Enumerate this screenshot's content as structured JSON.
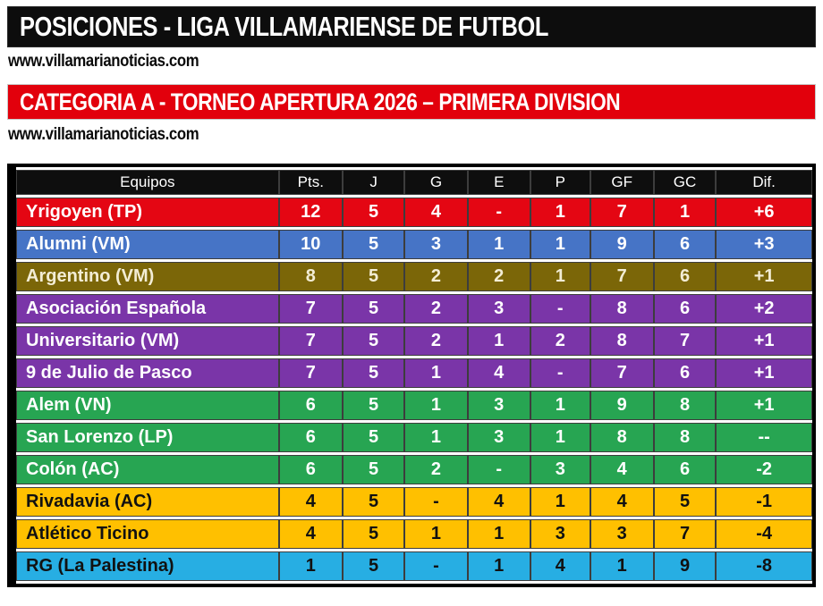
{
  "page": {
    "title_bar": "POSICIONES - LIGA VILLAMARIENSE DE FUTBOL",
    "website_top": "www.villamarianoticias.com",
    "category_bar": "CATEGORIA A - TORNEO APERTURA 2026 – PRIMERA DIVISION",
    "website_bottom": "www.villamarianoticias.com"
  },
  "colors": {
    "title_bar_bg": "#0d0d0d",
    "title_bar_fg": "#ffffff",
    "category_bar_bg": "#e2000c",
    "category_bar_fg": "#ffffff",
    "table_header_bg": "#0e0e0e",
    "table_header_fg": "#ffffff",
    "table_frame": "#000000",
    "cell_border": "#3d3d3d",
    "row_red": "#e40613",
    "row_blue": "#4674c6",
    "row_olive": "#7b6608",
    "row_purple": "#7a35a8",
    "row_green": "#27a552",
    "row_yellow": "#ffc000",
    "row_cyan": "#27aee3"
  },
  "table": {
    "headers": [
      "Equipos",
      "Pts.",
      "J",
      "G",
      "E",
      "P",
      "GF",
      "GC",
      "Dif."
    ],
    "col_widths": [
      "33%",
      "8%",
      "7.8%",
      "7.9%",
      "7.9%",
      "7.5%",
      "8%",
      "7.8%",
      "12.1%"
    ],
    "rows": [
      {
        "team": "Yrigoyen (TP)",
        "values": [
          "12",
          "5",
          "4",
          "-",
          "1",
          "7",
          "1",
          "+6"
        ],
        "bg": "#e40613",
        "fg": "#ffffff"
      },
      {
        "team": "Alumni (VM)",
        "values": [
          "10",
          "5",
          "3",
          "1",
          "1",
          "9",
          "6",
          "+3"
        ],
        "bg": "#4674c6",
        "fg": "#ffffff"
      },
      {
        "team": "Argentino (VM)",
        "values": [
          "8",
          "5",
          "2",
          "2",
          "1",
          "7",
          "6",
          "+1"
        ],
        "bg": "#7b6608",
        "fg": "#f3edd5"
      },
      {
        "team": "Asociación Española",
        "values": [
          "7",
          "5",
          "2",
          "3",
          "-",
          "8",
          "6",
          "+2"
        ],
        "bg": "#7a35a8",
        "fg": "#ffffff"
      },
      {
        "team": "Universitario (VM)",
        "values": [
          "7",
          "5",
          "2",
          "1",
          "2",
          "8",
          "7",
          "+1"
        ],
        "bg": "#7a35a8",
        "fg": "#ffffff"
      },
      {
        "team": "9 de Julio de Pasco",
        "values": [
          "7",
          "5",
          "1",
          "4",
          "-",
          "7",
          "6",
          "+1"
        ],
        "bg": "#7a35a8",
        "fg": "#ffffff"
      },
      {
        "team": "Alem (VN)",
        "values": [
          "6",
          "5",
          "1",
          "3",
          "1",
          "9",
          "8",
          "+1"
        ],
        "bg": "#27a552",
        "fg": "#ffffff"
      },
      {
        "team": "San Lorenzo (LP)",
        "values": [
          "6",
          "5",
          "1",
          "3",
          "1",
          "8",
          "8",
          "--"
        ],
        "bg": "#27a552",
        "fg": "#ffffff"
      },
      {
        "team": "Colón (AC)",
        "values": [
          "6",
          "5",
          "2",
          "-",
          "3",
          "4",
          "6",
          "-2"
        ],
        "bg": "#27a552",
        "fg": "#ffffff"
      },
      {
        "team": "Rivadavia (AC)",
        "values": [
          "4",
          "5",
          "-",
          "4",
          "1",
          "4",
          "5",
          "-1"
        ],
        "bg": "#ffc000",
        "fg": "#111111"
      },
      {
        "team": "Atlético Ticino",
        "values": [
          "4",
          "5",
          "1",
          "1",
          "3",
          "3",
          "7",
          "-4"
        ],
        "bg": "#ffc000",
        "fg": "#111111"
      },
      {
        "team": "RG (La Palestina)",
        "values": [
          "1",
          "5",
          "-",
          "1",
          "4",
          "1",
          "9",
          "-8"
        ],
        "bg": "#27aee3",
        "fg": "#111111"
      }
    ]
  },
  "chart_data": {
    "type": "table",
    "title": "POSICIONES - LIGA VILLAMARIENSE DE FUTBOL",
    "subtitle": "CATEGORIA A - TORNEO APERTURA 2026 – PRIMERA DIVISION",
    "source": "www.villamarianoticias.com",
    "columns": [
      "Equipos",
      "Pts.",
      "J",
      "G",
      "E",
      "P",
      "GF",
      "GC",
      "Dif."
    ],
    "rows": [
      [
        "Yrigoyen (TP)",
        "12",
        "5",
        "4",
        "-",
        "1",
        "7",
        "1",
        "+6"
      ],
      [
        "Alumni (VM)",
        "10",
        "5",
        "3",
        "1",
        "1",
        "9",
        "6",
        "+3"
      ],
      [
        "Argentino (VM)",
        "8",
        "5",
        "2",
        "2",
        "1",
        "7",
        "6",
        "+1"
      ],
      [
        "Asociación Española",
        "7",
        "5",
        "2",
        "3",
        "-",
        "8",
        "6",
        "+2"
      ],
      [
        "Universitario (VM)",
        "7",
        "5",
        "2",
        "1",
        "2",
        "8",
        "7",
        "+1"
      ],
      [
        "9 de Julio de Pasco",
        "7",
        "5",
        "1",
        "4",
        "-",
        "7",
        "6",
        "+1"
      ],
      [
        "Alem (VN)",
        "6",
        "5",
        "1",
        "3",
        "1",
        "9",
        "8",
        "+1"
      ],
      [
        "San Lorenzo (LP)",
        "6",
        "5",
        "1",
        "3",
        "1",
        "8",
        "8",
        "--"
      ],
      [
        "Colón (AC)",
        "6",
        "5",
        "2",
        "-",
        "3",
        "4",
        "6",
        "-2"
      ],
      [
        "Rivadavia (AC)",
        "4",
        "5",
        "-",
        "4",
        "1",
        "4",
        "5",
        "-1"
      ],
      [
        "Atlético Ticino",
        "4",
        "5",
        "1",
        "1",
        "3",
        "3",
        "7",
        "-4"
      ],
      [
        "RG (La Palestina)",
        "1",
        "5",
        "-",
        "1",
        "4",
        "1",
        "9",
        "-8"
      ]
    ]
  }
}
